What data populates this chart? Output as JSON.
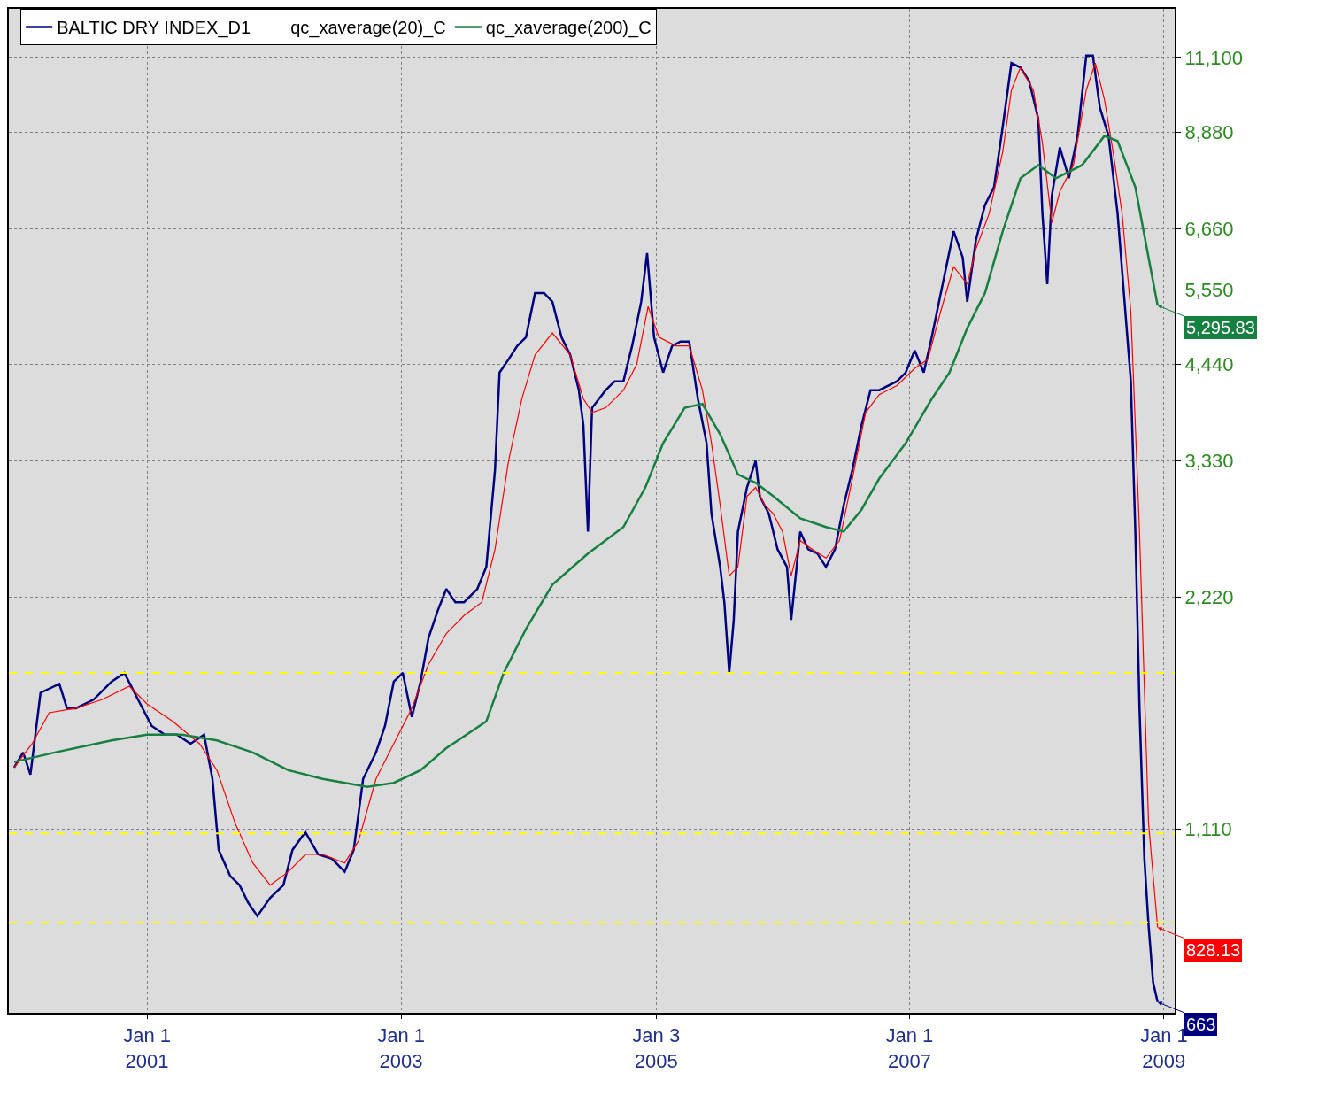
{
  "chart_data": {
    "type": "line",
    "xlim": [
      "1999-12-01",
      "2009-02-01"
    ],
    "xticks": [
      {
        "value": "2001-01-01",
        "label": "Jan 1\n2001"
      },
      {
        "value": "2003-01-01",
        "label": "Jan 1\n2003"
      },
      {
        "value": "2005-01-03",
        "label": "Jan 3\n2005"
      },
      {
        "value": "2007-01-01",
        "label": "Jan 1\n2007"
      },
      {
        "value": "2009-01-01",
        "label": "Jan 1\n2009"
      }
    ],
    "ylim": [
      642,
      12830
    ],
    "log": "y",
    "yticks": [
      {
        "value": 1110,
        "label": "1,110"
      },
      {
        "value": 2220,
        "label": "2,220"
      },
      {
        "value": 3330,
        "label": "3,330"
      },
      {
        "value": 4440,
        "label": "4,440"
      },
      {
        "value": 5550,
        "label": "5,550"
      },
      {
        "value": 6660,
        "label": "6,660"
      },
      {
        "value": 8880,
        "label": "8,880"
      },
      {
        "value": 11100,
        "label": "11,100"
      }
    ],
    "grid": true,
    "legend": "top",
    "series": [
      {
        "name": "BALTIC DRY INDEX_D1",
        "color": "#000080",
        "x": [
          "1999-12-16",
          "2000-01-11",
          "2000-02-01",
          "2000-03-01",
          "2000-04-24",
          "2000-05-16",
          "2000-06-11",
          "2000-08-01",
          "2000-09-21",
          "2000-10-28",
          "2000-12-06",
          "2001-01-14",
          "2001-02-21",
          "2001-03-28",
          "2001-05-06",
          "2001-06-14",
          "2001-07-08",
          "2001-07-26",
          "2001-08-28",
          "2001-09-24",
          "2001-10-18",
          "2001-11-14",
          "2001-12-21",
          "2002-01-28",
          "2002-02-23",
          "2002-04-01",
          "2002-05-08",
          "2002-06-16",
          "2002-07-23",
          "2002-08-18",
          "2002-09-14",
          "2002-10-21",
          "2002-11-16",
          "2002-12-11",
          "2003-01-06",
          "2003-02-01",
          "2003-02-26",
          "2003-03-21",
          "2003-04-16",
          "2003-05-11",
          "2003-06-06",
          "2003-07-01",
          "2003-08-08",
          "2003-09-03",
          "2003-09-28",
          "2003-10-11",
          "2003-11-06",
          "2003-12-01",
          "2003-12-26",
          "2004-01-21",
          "2004-02-16",
          "2004-03-11",
          "2004-04-06",
          "2004-05-01",
          "2004-05-26",
          "2004-06-08",
          "2004-06-21",
          "2004-07-03",
          "2004-08-11",
          "2004-09-06",
          "2004-10-01",
          "2004-10-26",
          "2004-11-21",
          "2004-12-08",
          "2004-12-28",
          "2005-01-23",
          "2005-02-18",
          "2005-03-14",
          "2005-04-08",
          "2005-05-03",
          "2005-05-28",
          "2005-06-11",
          "2005-07-06",
          "2005-07-18",
          "2005-08-01",
          "2005-08-14",
          "2005-08-26",
          "2005-09-21",
          "2005-10-16",
          "2005-10-28",
          "2005-11-23",
          "2005-12-18",
          "2006-01-14",
          "2006-01-26",
          "2006-02-21",
          "2006-03-16",
          "2006-04-11",
          "2006-05-06",
          "2006-06-01",
          "2006-06-26",
          "2006-07-21",
          "2006-08-16",
          "2006-09-11",
          "2006-10-06",
          "2006-11-26",
          "2006-12-21",
          "2007-01-16",
          "2007-02-11",
          "2007-03-06",
          "2007-04-01",
          "2007-05-08",
          "2007-06-03",
          "2007-06-16",
          "2007-07-11",
          "2007-08-06",
          "2007-09-01",
          "2007-09-26",
          "2007-10-21",
          "2007-11-16",
          "2007-12-11",
          "2008-01-06",
          "2008-01-18",
          "2008-02-01",
          "2008-02-14",
          "2008-03-08",
          "2008-04-03",
          "2008-04-28",
          "2008-05-23",
          "2008-06-11",
          "2008-07-01",
          "2008-07-26",
          "2008-08-21",
          "2008-09-16",
          "2008-09-28",
          "2008-10-11",
          "2008-10-23",
          "2008-11-06",
          "2008-11-18",
          "2008-12-01",
          "2008-12-14"
        ],
        "values": [
          1335,
          1396,
          1307,
          1668,
          1713,
          1593,
          1593,
          1635,
          1724,
          1770,
          1635,
          1512,
          1472,
          1472,
          1433,
          1472,
          1290,
          1044,
          966,
          940,
          893,
          857,
          905,
          940,
          1044,
          1101,
          1030,
          1017,
          978,
          1044,
          1290,
          1396,
          1512,
          1724,
          1770,
          1552,
          1724,
          1966,
          2129,
          2273,
          2185,
          2185,
          2273,
          2428,
          3245,
          4336,
          4510,
          4695,
          4819,
          5497,
          5497,
          5354,
          4819,
          4571,
          4114,
          3702,
          2698,
          3903,
          4114,
          4224,
          4224,
          4695,
          5354,
          6190,
          4819,
          4336,
          4695,
          4757,
          4757,
          4008,
          3512,
          2844,
          2428,
          2185,
          1770,
          2073,
          2698,
          3078,
          3332,
          2998,
          2844,
          2559,
          2428,
          2073,
          2698,
          2559,
          2527,
          2428,
          2559,
          2920,
          3245,
          3702,
          4114,
          4114,
          4224,
          4336,
          4633,
          4336,
          4819,
          5497,
          6610,
          6110,
          5354,
          6440,
          7150,
          7540,
          9030,
          10915,
          10770,
          10340,
          9250,
          6967,
          5643,
          7345,
          8490,
          7742,
          8780,
          11160,
          11160,
          9558,
          8780,
          6967,
          4950,
          4224,
          2698,
          1593,
          1017,
          834,
          703,
          663
        ]
      },
      {
        "name": "qc_xaverage(20)_C",
        "color": "#ff0000",
        "x": [
          "1999-12-16",
          "2000-02-06",
          "2000-03-26",
          "2000-06-11",
          "2000-08-26",
          "2000-11-11",
          "2001-01-01",
          "2001-03-16",
          "2001-06-01",
          "2001-07-21",
          "2001-09-11",
          "2001-11-01",
          "2001-12-21",
          "2002-02-11",
          "2002-04-01",
          "2002-05-21",
          "2002-07-23",
          "2002-09-01",
          "2002-10-21",
          "2002-12-11",
          "2003-02-01",
          "2003-03-21",
          "2003-05-11",
          "2003-07-01",
          "2003-08-21",
          "2003-09-28",
          "2003-11-06",
          "2003-12-14",
          "2004-01-21",
          "2004-03-11",
          "2004-05-01",
          "2004-06-08",
          "2004-07-03",
          "2004-08-11",
          "2004-10-01",
          "2004-11-08",
          "2004-12-11",
          "2005-01-11",
          "2005-03-01",
          "2005-04-08",
          "2005-05-16",
          "2005-06-11",
          "2005-07-06",
          "2005-08-01",
          "2005-08-26",
          "2005-09-21",
          "2005-10-16",
          "2005-11-11",
          "2005-12-06",
          "2006-01-01",
          "2006-01-26",
          "2006-02-21",
          "2006-03-28",
          "2006-05-06",
          "2006-06-14",
          "2006-07-21",
          "2006-08-28",
          "2006-10-06",
          "2006-11-26",
          "2007-01-16",
          "2007-02-23",
          "2007-04-01",
          "2007-05-08",
          "2007-06-16",
          "2007-07-11",
          "2007-08-18",
          "2007-09-26",
          "2007-10-21",
          "2007-11-16",
          "2007-12-23",
          "2008-01-18",
          "2008-02-14",
          "2008-03-08",
          "2008-04-16",
          "2008-05-23",
          "2008-06-18",
          "2008-07-14",
          "2008-08-08",
          "2008-09-03",
          "2008-09-28",
          "2008-10-23",
          "2008-11-18",
          "2008-12-14"
        ],
        "values": [
          1335,
          1433,
          1572,
          1593,
          1635,
          1701,
          1614,
          1532,
          1433,
          1324,
          1131,
          1004,
          940,
          978,
          1030,
          1030,
          1004,
          1073,
          1290,
          1433,
          1593,
          1816,
          1990,
          2100,
          2185,
          2559,
          3332,
          4008,
          4571,
          4880,
          4571,
          4008,
          3850,
          3903,
          4114,
          4440,
          5280,
          4819,
          4695,
          4695,
          4114,
          3512,
          2920,
          2365,
          2428,
          2998,
          3078,
          2920,
          2844,
          2698,
          2365,
          2627,
          2559,
          2493,
          2627,
          3160,
          3850,
          4060,
          4170,
          4390,
          4510,
          5210,
          5949,
          5643,
          6271,
          6967,
          8380,
          10070,
          10770,
          10070,
          8603,
          6780,
          7440,
          8050,
          10070,
          10915,
          9800,
          8380,
          6967,
          5210,
          2698,
          1131,
          828.13
        ]
      },
      {
        "name": "qc_xaverage(200)_C",
        "color": "#168040",
        "x": [
          "1999-12-16",
          "2000-04-11",
          "2000-09-21",
          "2001-01-01",
          "2001-04-11",
          "2001-07-21",
          "2001-11-01",
          "2002-02-11",
          "2002-05-21",
          "2002-09-26",
          "2002-12-11",
          "2003-02-26",
          "2003-05-11",
          "2003-09-03",
          "2003-10-23",
          "2003-12-26",
          "2004-03-11",
          "2004-06-21",
          "2004-10-01",
          "2004-12-03",
          "2005-01-23",
          "2005-03-26",
          "2005-05-16",
          "2005-07-06",
          "2005-08-26",
          "2005-10-16",
          "2005-12-06",
          "2006-02-21",
          "2006-05-06",
          "2006-06-26",
          "2006-08-16",
          "2006-10-06",
          "2006-12-21",
          "2007-03-06",
          "2007-04-26",
          "2007-06-16",
          "2007-08-06",
          "2007-09-26",
          "2007-11-16",
          "2008-01-06",
          "2008-02-26",
          "2008-05-11",
          "2008-07-14",
          "2008-08-21",
          "2008-10-11",
          "2008-11-18",
          "2008-12-14"
        ],
        "values": [
          1357,
          1396,
          1447,
          1472,
          1472,
          1447,
          1396,
          1324,
          1290,
          1260,
          1275,
          1324,
          1414,
          1532,
          1770,
          2018,
          2303,
          2527,
          2735,
          3078,
          3512,
          3903,
          3950,
          3606,
          3200,
          3120,
          2998,
          2807,
          2735,
          2698,
          2880,
          3160,
          3512,
          4008,
          4336,
          4950,
          5497,
          6610,
          7742,
          8050,
          7742,
          8050,
          8780,
          8650,
          7540,
          6110,
          5295.83
        ]
      }
    ],
    "ref_lines": [
      {
        "axis": "y",
        "value": 1770,
        "color": "#ffff00",
        "line_style": "dashed"
      },
      {
        "axis": "y",
        "value": 1097,
        "color": "#ffff00",
        "line_style": "dashed"
      },
      {
        "axis": "y",
        "value": 841,
        "color": "#ffff00",
        "line_style": "dashed"
      }
    ],
    "annotations": [
      {
        "text": "663",
        "x": "2008-12-14",
        "y": 663
      },
      {
        "text": "828.13",
        "x": "2008-12-14",
        "y": 828.13
      },
      {
        "text": "5,295.83",
        "x": "2008-12-14",
        "y": 5295.83
      }
    ]
  }
}
